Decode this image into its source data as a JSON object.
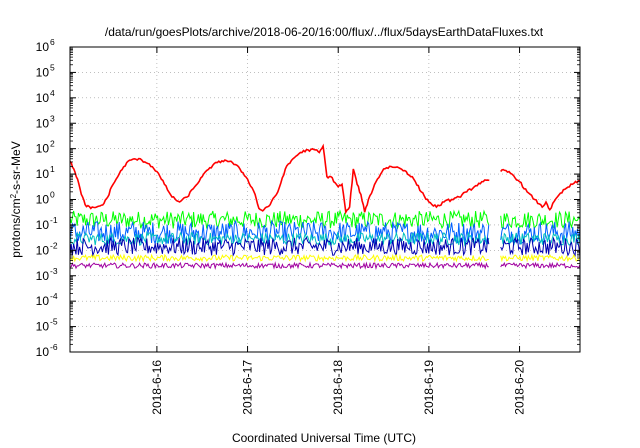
{
  "chart_data": {
    "type": "line",
    "title": "/data/run/goesPlots/archive/2018-06-20/16:00/flux/../flux/5daysEarthDataFluxes.txt",
    "xlabel": "Coordinated Universal Time (UTC)",
    "ylabel": {
      "prefix": "protons/cm",
      "superscript": "2",
      "suffix": "-s-sr-MeV"
    },
    "y_scale": "log",
    "ylim_exponents": [
      -6,
      6
    ],
    "y_ticks": [
      {
        "base": "10",
        "exp": "-6"
      },
      {
        "base": "10",
        "exp": "-5"
      },
      {
        "base": "10",
        "exp": "-4"
      },
      {
        "base": "10",
        "exp": "-3"
      },
      {
        "base": "10",
        "exp": "-2"
      },
      {
        "base": "10",
        "exp": "-1"
      },
      {
        "base": "10",
        "exp": "0"
      },
      {
        "base": "10",
        "exp": "1"
      },
      {
        "base": "10",
        "exp": "2"
      },
      {
        "base": "10",
        "exp": "3"
      },
      {
        "base": "10",
        "exp": "4"
      },
      {
        "base": "10",
        "exp": "5"
      },
      {
        "base": "10",
        "exp": "6"
      }
    ],
    "x_range_days": [
      "2018-06-15T01:00",
      "2018-06-20T16:00"
    ],
    "x_ticks": [
      "2018-6-16",
      "2018-6-17",
      "2018-6-18",
      "2018-6-19",
      "2018-6-20"
    ],
    "data_gap": [
      "2018-06-19T16:00",
      "2018-06-19T19:00"
    ],
    "grid": true,
    "legend": "none",
    "series": [
      {
        "color": "#ff0000",
        "noise": 0.05,
        "points": [
          [
            "2018-06-15T01:00",
            1.5
          ],
          [
            "2018-06-15T02:00",
            1.2
          ],
          [
            "2018-06-15T03:00",
            0.8
          ],
          [
            "2018-06-15T04:00",
            0.2
          ],
          [
            "2018-06-15T05:00",
            -0.2
          ],
          [
            "2018-06-15T06:30",
            -0.35
          ],
          [
            "2018-06-15T08:00",
            -0.3
          ],
          [
            "2018-06-15T09:00",
            -0.25
          ],
          [
            "2018-06-15T10:00",
            -0.15
          ],
          [
            "2018-06-15T11:00",
            0.1
          ],
          [
            "2018-06-15T12:00",
            0.5
          ],
          [
            "2018-06-15T14:00",
            1.0
          ],
          [
            "2018-06-15T16:00",
            1.45
          ],
          [
            "2018-06-15T18:00",
            1.6
          ],
          [
            "2018-06-15T20:00",
            1.55
          ],
          [
            "2018-06-15T22:00",
            1.4
          ],
          [
            "2018-06-16T00:00",
            1.1
          ],
          [
            "2018-06-16T02:00",
            0.6
          ],
          [
            "2018-06-16T04:00",
            0.1
          ],
          [
            "2018-06-16T06:00",
            -0.1
          ],
          [
            "2018-06-16T08:00",
            0.1
          ],
          [
            "2018-06-16T10:00",
            0.5
          ],
          [
            "2018-06-16T12:00",
            0.9
          ],
          [
            "2018-06-16T14:00",
            1.25
          ],
          [
            "2018-06-16T16:00",
            1.45
          ],
          [
            "2018-06-16T18:00",
            1.55
          ],
          [
            "2018-06-16T20:00",
            1.45
          ],
          [
            "2018-06-16T22:00",
            1.2
          ],
          [
            "2018-06-17T00:00",
            0.8
          ],
          [
            "2018-06-17T02:00",
            0.2
          ],
          [
            "2018-06-17T03:00",
            -0.35
          ],
          [
            "2018-06-17T04:00",
            -0.45
          ],
          [
            "2018-06-17T05:00",
            -0.3
          ],
          [
            "2018-06-17T06:00",
            -0.2
          ],
          [
            "2018-06-17T08:00",
            0.3
          ],
          [
            "2018-06-17T10:00",
            1.2
          ],
          [
            "2018-06-17T12:00",
            1.6
          ],
          [
            "2018-06-17T14:00",
            1.85
          ],
          [
            "2018-06-17T16:00",
            1.95
          ],
          [
            "2018-06-17T18:00",
            1.95
          ],
          [
            "2018-06-17T19:00",
            1.85
          ],
          [
            "2018-06-17T20:00",
            2.1
          ],
          [
            "2018-06-17T21:00",
            0.9
          ],
          [
            "2018-06-17T22:00",
            0.9
          ],
          [
            "2018-06-18T00:00",
            0.5
          ],
          [
            "2018-06-18T01:00",
            0.6
          ],
          [
            "2018-06-18T02:00",
            -0.5
          ],
          [
            "2018-06-18T03:00",
            -0.3
          ],
          [
            "2018-06-18T04:00",
            1.2
          ],
          [
            "2018-06-18T05:00",
            0.6
          ],
          [
            "2018-06-18T06:00",
            0.2
          ],
          [
            "2018-06-18T07:00",
            -0.5
          ],
          [
            "2018-06-18T08:00",
            0.0
          ],
          [
            "2018-06-18T10:00",
            0.7
          ],
          [
            "2018-06-18T12:00",
            1.2
          ],
          [
            "2018-06-18T14:00",
            1.3
          ],
          [
            "2018-06-18T16:00",
            1.25
          ],
          [
            "2018-06-18T18:00",
            1.1
          ],
          [
            "2018-06-18T20:00",
            0.8
          ],
          [
            "2018-06-18T22:00",
            0.3
          ],
          [
            "2018-06-19T00:00",
            -0.1
          ],
          [
            "2018-06-19T02:00",
            -0.3
          ],
          [
            "2018-06-19T04:00",
            -0.1
          ],
          [
            "2018-06-19T06:00",
            0.0
          ],
          [
            "2018-06-19T08:00",
            0.1
          ],
          [
            "2018-06-19T10:00",
            0.3
          ],
          [
            "2018-06-19T12:00",
            0.5
          ],
          [
            "2018-06-19T14:00",
            0.7
          ],
          [
            "2018-06-19T16:00",
            0.75
          ],
          null,
          [
            "2018-06-19T19:00",
            1.1
          ],
          [
            "2018-06-19T20:00",
            1.15
          ],
          [
            "2018-06-19T22:00",
            1.0
          ],
          [
            "2018-06-20T00:00",
            0.7
          ],
          [
            "2018-06-20T02:00",
            0.3
          ],
          [
            "2018-06-20T04:00",
            0.0
          ],
          [
            "2018-06-20T06:00",
            -0.3
          ],
          [
            "2018-06-20T07:00",
            -0.1
          ],
          [
            "2018-06-20T08:00",
            -0.4
          ],
          [
            "2018-06-20T10:00",
            0.1
          ],
          [
            "2018-06-20T12:00",
            0.4
          ],
          [
            "2018-06-20T14:00",
            0.6
          ],
          [
            "2018-06-20T16:00",
            0.75
          ]
        ]
      },
      {
        "color": "#00ff00",
        "level": -0.8,
        "amp": 0.35
      },
      {
        "color": "#0060ff",
        "level": -1.3,
        "amp": 0.45
      },
      {
        "color": "#00c0c0",
        "level": -1.55,
        "amp": 0.25
      },
      {
        "color": "#0000b0",
        "level": -1.85,
        "amp": 0.35
      },
      {
        "color": "#ffff00",
        "level": -2.3,
        "amp": 0.12
      },
      {
        "color": "#a000a0",
        "level": -2.6,
        "amp": 0.1
      }
    ]
  }
}
